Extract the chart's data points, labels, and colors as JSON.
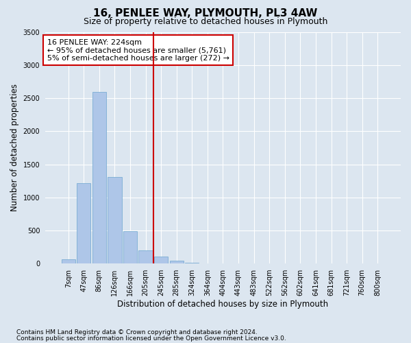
{
  "title": "16, PENLEE WAY, PLYMOUTH, PL3 4AW",
  "subtitle": "Size of property relative to detached houses in Plymouth",
  "xlabel": "Distribution of detached houses by size in Plymouth",
  "ylabel": "Number of detached properties",
  "bar_labels": [
    "7sqm",
    "47sqm",
    "86sqm",
    "126sqm",
    "166sqm",
    "205sqm",
    "245sqm",
    "285sqm",
    "324sqm",
    "364sqm",
    "404sqm",
    "443sqm",
    "483sqm",
    "522sqm",
    "562sqm",
    "602sqm",
    "641sqm",
    "681sqm",
    "721sqm",
    "760sqm",
    "800sqm"
  ],
  "bar_values": [
    70,
    1220,
    2590,
    1310,
    490,
    195,
    110,
    40,
    10,
    3,
    2,
    0,
    0,
    0,
    0,
    0,
    0,
    0,
    0,
    0,
    0
  ],
  "bar_color": "#aec6e8",
  "bar_edge_color": "#7aadd4",
  "vline_bar_index": 6,
  "vline_color": "#cc0000",
  "annotation_line1": "16 PENLEE WAY: 224sqm",
  "annotation_line2": "← 95% of detached houses are smaller (5,761)",
  "annotation_line3": "5% of semi-detached houses are larger (272) →",
  "annotation_box_color": "#cc0000",
  "ylim": [
    0,
    3500
  ],
  "yticks": [
    0,
    500,
    1000,
    1500,
    2000,
    2500,
    3000,
    3500
  ],
  "footnote1": "Contains HM Land Registry data © Crown copyright and database right 2024.",
  "footnote2": "Contains public sector information licensed under the Open Government Licence v3.0.",
  "bg_color": "#dce6f0",
  "plot_bg_color": "#dce6f0",
  "grid_color": "#ffffff",
  "title_fontsize": 11,
  "subtitle_fontsize": 9,
  "axis_label_fontsize": 8.5,
  "tick_fontsize": 7,
  "annotation_fontsize": 8,
  "footnote_fontsize": 6.5
}
